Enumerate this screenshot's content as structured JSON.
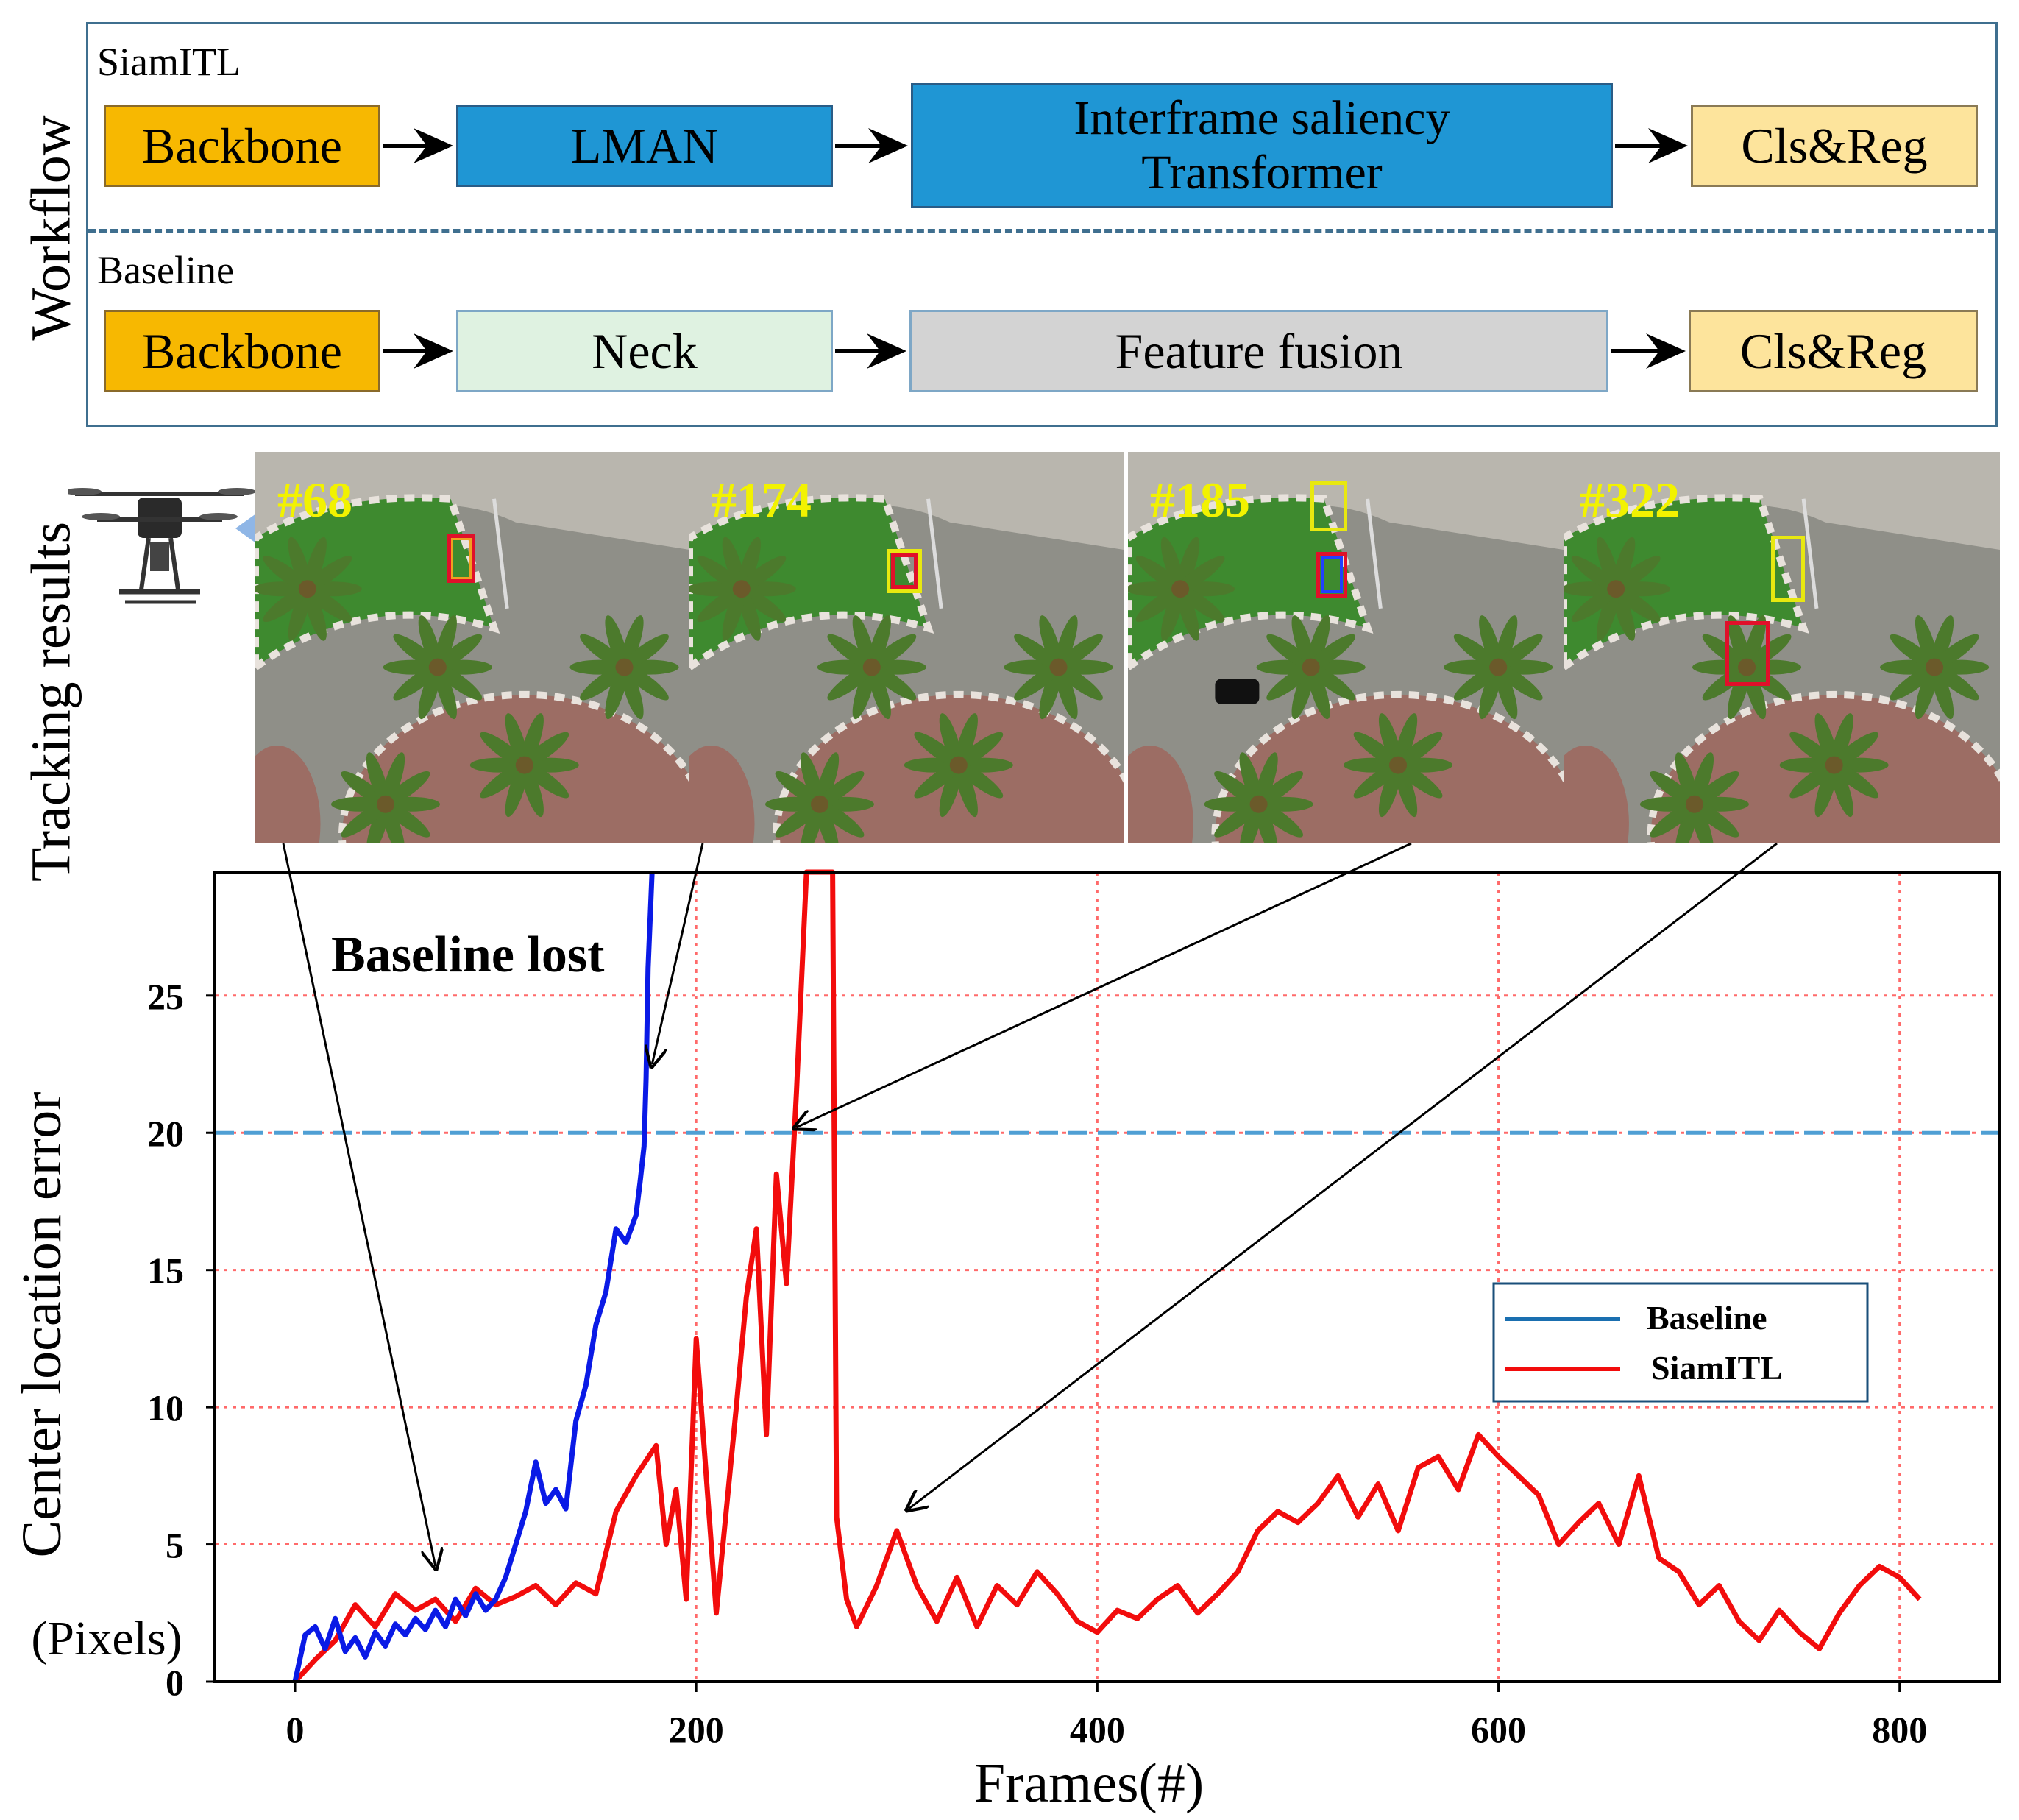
{
  "figure_labels": {
    "workflow": "Workflow",
    "tracking_results": "Tracking results",
    "annotation": "Baseline lost"
  },
  "workflow": {
    "siamitl": {
      "label": "SiamITL",
      "blocks": [
        "Backbone",
        "LMAN",
        "Interframe saliency Transformer",
        "Cls&Reg"
      ],
      "ist_line1": "Interframe saliency",
      "ist_line2": "Transformer"
    },
    "baseline": {
      "label": "Baseline",
      "blocks": [
        "Backbone",
        "Neck",
        "Feature fusion",
        "Cls&Reg"
      ]
    }
  },
  "tracking_frames": [
    {
      "frame": "#68"
    },
    {
      "frame": "#174"
    },
    {
      "frame": "#185"
    },
    {
      "frame": "#322"
    }
  ],
  "colors": {
    "baseline_line": "#0a1ae6",
    "siamitl_line": "#f20c0c",
    "baseline_legend": "#1a6fb0",
    "threshold": "#4f9fd4",
    "grid": "#ff6a6a",
    "accent_backbone": "#f7b801",
    "accent_blue_block": "#1f96d4"
  },
  "chart_data": {
    "type": "line",
    "title": "",
    "xlabel": "Frames(#)",
    "ylabel": "Center location error",
    "ylabel_unit": "(Pixels)",
    "xlim": [
      -40,
      850
    ],
    "ylim": [
      0,
      29.5
    ],
    "xticks": [
      0,
      200,
      400,
      600,
      800
    ],
    "yticks": [
      0,
      5,
      10,
      15,
      20,
      25
    ],
    "threshold": 20,
    "grid": true,
    "legend_position": "right-middle",
    "series": [
      {
        "name": "Baseline",
        "x": [
          0,
          5,
          10,
          15,
          20,
          25,
          30,
          35,
          40,
          45,
          50,
          55,
          60,
          65,
          70,
          75,
          80,
          85,
          90,
          95,
          100,
          105,
          110,
          115,
          120,
          125,
          130,
          135,
          140,
          145,
          150,
          155,
          160,
          165,
          170,
          172,
          174,
          175,
          176,
          178
        ],
        "y": [
          0,
          1.7,
          2.0,
          1.2,
          2.3,
          1.1,
          1.6,
          0.9,
          1.8,
          1.3,
          2.1,
          1.7,
          2.3,
          1.9,
          2.6,
          2.0,
          3.0,
          2.4,
          3.2,
          2.6,
          3.0,
          3.8,
          5.0,
          6.2,
          8.0,
          6.5,
          7.0,
          6.3,
          9.5,
          10.8,
          13.0,
          14.2,
          16.5,
          16.0,
          17.0,
          18.2,
          19.5,
          22.0,
          26.0,
          29.5
        ]
      },
      {
        "name": "SiamITL",
        "x": [
          0,
          10,
          20,
          30,
          40,
          50,
          60,
          70,
          80,
          90,
          100,
          110,
          120,
          130,
          140,
          150,
          160,
          170,
          180,
          185,
          190,
          195,
          200,
          210,
          220,
          225,
          230,
          235,
          240,
          245,
          250,
          255,
          258,
          262,
          265,
          268,
          270,
          275,
          280,
          290,
          300,
          310,
          320,
          330,
          340,
          350,
          360,
          370,
          380,
          390,
          400,
          410,
          420,
          430,
          440,
          450,
          460,
          470,
          480,
          490,
          500,
          510,
          520,
          530,
          540,
          550,
          560,
          570,
          580,
          590,
          600,
          610,
          620,
          630,
          640,
          650,
          660,
          670,
          680,
          690,
          700,
          710,
          720,
          730,
          740,
          750,
          760,
          770,
          780,
          790,
          800,
          810
        ],
        "y": [
          0,
          0.8,
          1.5,
          2.8,
          2.0,
          3.2,
          2.6,
          3.0,
          2.2,
          3.4,
          2.8,
          3.1,
          3.5,
          2.8,
          3.6,
          3.2,
          6.2,
          7.5,
          8.6,
          5.0,
          7.0,
          3.0,
          12.5,
          2.5,
          10.0,
          14.0,
          16.5,
          9.0,
          18.5,
          14.5,
          21.5,
          29.5,
          29.5,
          29.5,
          29.5,
          29.5,
          6.0,
          3.0,
          2.0,
          3.5,
          5.5,
          3.5,
          2.2,
          3.8,
          2.0,
          3.5,
          2.8,
          4.0,
          3.2,
          2.2,
          1.8,
          2.6,
          2.3,
          3.0,
          3.5,
          2.5,
          3.2,
          4.0,
          5.5,
          6.2,
          5.8,
          6.5,
          7.5,
          6.0,
          7.2,
          5.5,
          7.8,
          8.2,
          7.0,
          9.0,
          8.2,
          7.5,
          6.8,
          5.0,
          5.8,
          6.5,
          5.0,
          7.5,
          4.5,
          4.0,
          2.8,
          3.5,
          2.2,
          1.5,
          2.6,
          1.8,
          1.2,
          2.5,
          3.5,
          4.2,
          3.8,
          3.0
        ]
      }
    ],
    "frame_markers": [
      68,
      174,
      185,
      322
    ]
  }
}
